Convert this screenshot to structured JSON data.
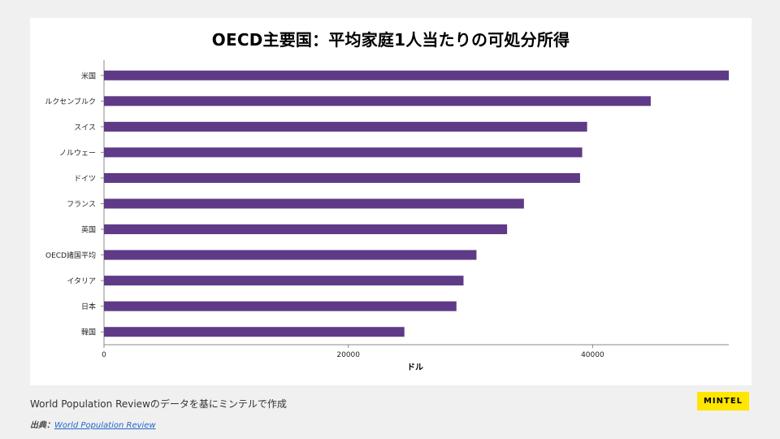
{
  "chart_data": {
    "type": "bar",
    "orientation": "horizontal",
    "title": "OECD主要国：平均家庭1人当たりの可処分所得",
    "categories": [
      "米国",
      "ルクセンブルク",
      "スイス",
      "ノルウェー",
      "ドイツ",
      "フランス",
      "英国",
      "OECD諸国平均",
      "イタリア",
      "日本",
      "韓国"
    ],
    "values": [
      51147,
      44757,
      39548,
      39144,
      38971,
      34375,
      32997,
      30490,
      29430,
      28851,
      24590
    ],
    "xlabel": "ドル",
    "ylabel": "",
    "xlim": [
      0,
      51147
    ],
    "xticks": [
      0,
      20000,
      40000
    ],
    "xtick_labels": [
      "0",
      "20000",
      "40000"
    ],
    "bar_color": "#5e3a87",
    "grid": false
  },
  "footer": {
    "caption": "World Population Reviewのデータを基にミンテルで作成",
    "source_label": "出典：",
    "source_link": "World Population Review"
  },
  "logo": {
    "text": "MINTEL",
    "color": "#ffe600"
  }
}
